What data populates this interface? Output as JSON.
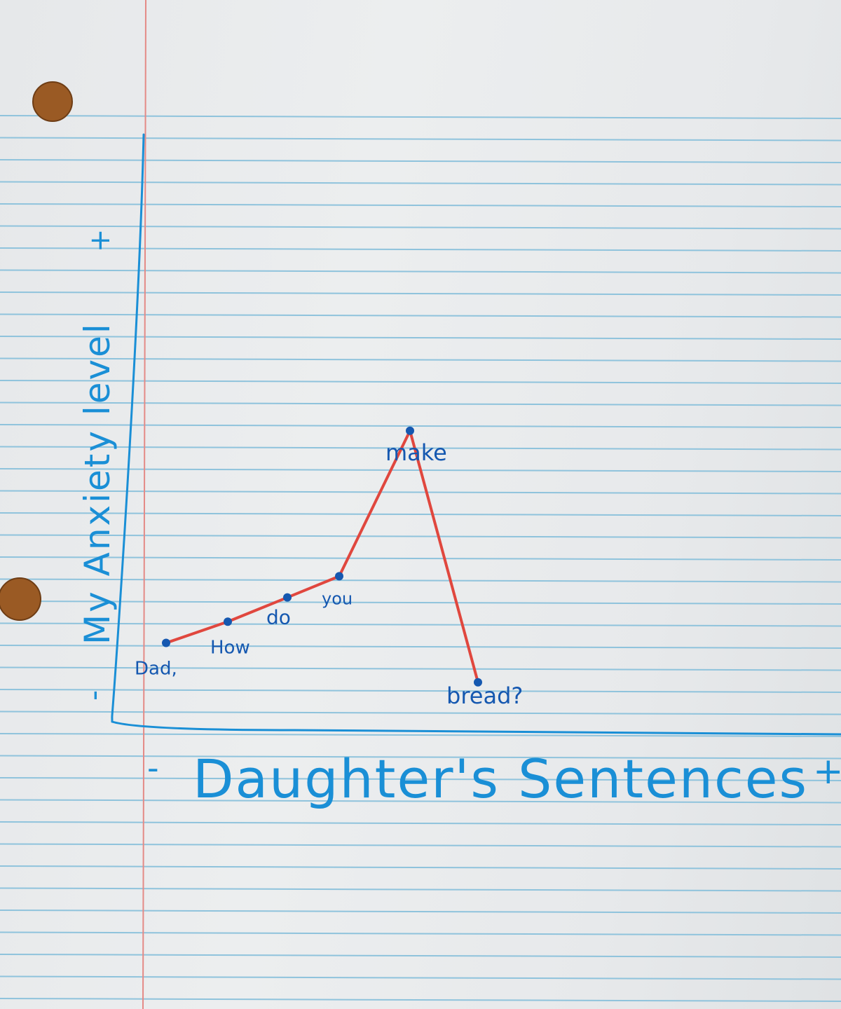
{
  "colors": {
    "paper": "#eaeced",
    "rule_line": "#8fc3dc",
    "margin_line": "#e48a86",
    "hole": "#9a5a24",
    "ink": "#1a8fd6",
    "point_ink": "#1558b0",
    "line": "#e0473e"
  },
  "chart_data": {
    "type": "line",
    "title": "",
    "xlabel": "Daughter's Sentences",
    "ylabel": "My Anxiety level",
    "x_axis_ends": {
      "minus": "-",
      "plus": "+"
    },
    "y_axis_ends": {
      "minus": "-",
      "plus": "+"
    },
    "grid": false,
    "categories": [
      "Dad,",
      "How",
      "do",
      "you",
      "make",
      "bread?"
    ],
    "values": [
      2.6,
      3.3,
      4.1,
      4.8,
      9.6,
      1.3
    ],
    "ylim": [
      0,
      20
    ]
  }
}
